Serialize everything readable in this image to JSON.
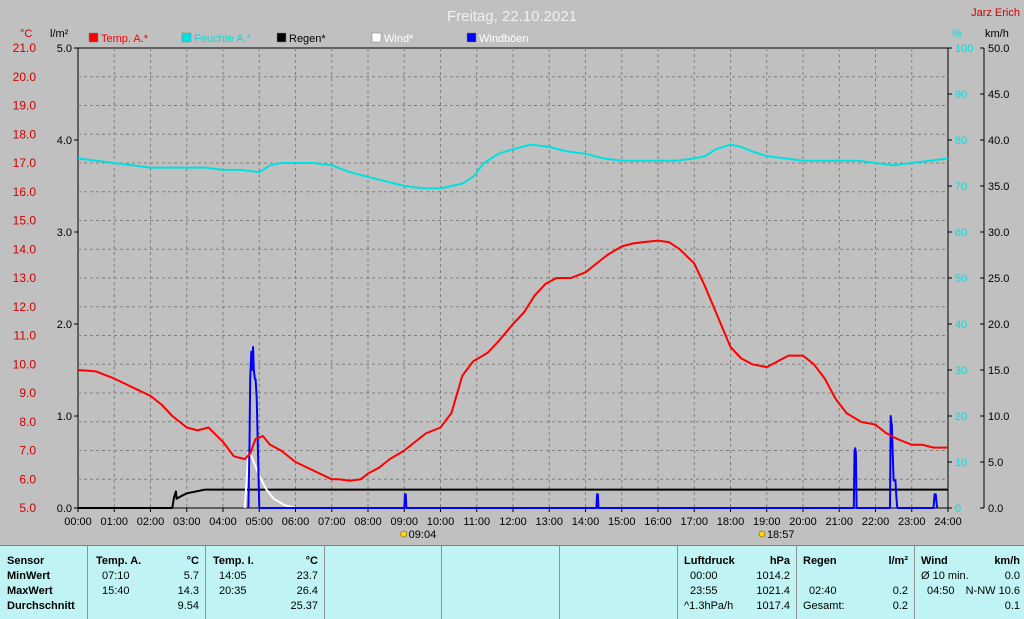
{
  "chart_data": {
    "type": "line",
    "title": "Freitag, 22.10.2021",
    "author": "Jarz Erich",
    "left_units": [
      "°C",
      "l/m²"
    ],
    "right_units": [
      "%",
      "km/h"
    ],
    "x_ticks": [
      "00:00",
      "01:00",
      "02:00",
      "03:00",
      "04:00",
      "05:00",
      "06:00",
      "07:00",
      "08:00",
      "09:00",
      "10:00",
      "11:00",
      "12:00",
      "13:00",
      "14:00",
      "15:00",
      "16:00",
      "17:00",
      "18:00",
      "19:00",
      "20:00",
      "21:00",
      "22:00",
      "23:00",
      "24:00"
    ],
    "temp_ticks": [
      "5.0",
      "6.0",
      "7.0",
      "8.0",
      "9.0",
      "10.0",
      "11.0",
      "12.0",
      "13.0",
      "14.0",
      "15.0",
      "16.0",
      "17.0",
      "18.0",
      "19.0",
      "20.0",
      "21.0"
    ],
    "rain_ticks": [
      "0.0",
      "1.0",
      "2.0",
      "3.0",
      "4.0",
      "5.0"
    ],
    "humidity_ticks": [
      "0",
      "10",
      "20",
      "30",
      "40",
      "50",
      "60",
      "70",
      "80",
      "90",
      "100"
    ],
    "wind_ticks": [
      "0.0",
      "5.0",
      "10.0",
      "15.0",
      "20.0",
      "25.0",
      "30.0",
      "35.0",
      "40.0",
      "45.0",
      "50.0"
    ],
    "temp_range": [
      5,
      21
    ],
    "rain_range": [
      0,
      5
    ],
    "humidity_range": [
      0,
      100
    ],
    "wind_range": [
      0,
      50
    ],
    "grid": true,
    "legend_position": "top",
    "sunrise": "09:04",
    "sunset": "18:57",
    "series": [
      {
        "name": "Temp. A.*",
        "axis": "temp",
        "color": "#ff0000",
        "x": [
          0,
          0.5,
          1,
          1.5,
          2,
          2.3,
          2.6,
          3,
          3.3,
          3.6,
          4,
          4.3,
          4.6,
          4.75,
          4.9,
          5.1,
          5.3,
          5.6,
          6,
          6.5,
          7,
          7.2,
          7.5,
          7.8,
          8,
          8.3,
          8.6,
          9,
          9.3,
          9.6,
          10,
          10.3,
          10.6,
          10.9,
          11.3,
          11.6,
          12,
          12.3,
          12.6,
          12.9,
          13.2,
          13.6,
          14,
          14.3,
          14.6,
          15,
          15.3,
          15.6,
          16,
          16.3,
          16.6,
          17,
          17.3,
          17.6,
          18,
          18.3,
          18.6,
          19,
          19.3,
          19.6,
          20,
          20.3,
          20.6,
          20.9,
          21.2,
          21.6,
          22,
          22.3,
          22.6,
          23,
          23.3,
          23.6,
          24
        ],
        "y": [
          9.8,
          9.75,
          9.5,
          9.2,
          8.9,
          8.6,
          8.2,
          7.8,
          7.7,
          7.8,
          7.3,
          6.8,
          6.7,
          6.9,
          7.4,
          7.5,
          7.2,
          7.0,
          6.6,
          6.3,
          6.0,
          6.0,
          5.95,
          6.0,
          6.2,
          6.4,
          6.7,
          7.0,
          7.3,
          7.6,
          7.8,
          8.3,
          9.6,
          10.1,
          10.4,
          10.8,
          11.4,
          11.8,
          12.4,
          12.8,
          13.0,
          13.0,
          13.2,
          13.5,
          13.8,
          14.1,
          14.2,
          14.25,
          14.3,
          14.25,
          14.0,
          13.5,
          12.7,
          11.8,
          10.6,
          10.2,
          10.0,
          9.9,
          10.1,
          10.3,
          10.3,
          10.0,
          9.5,
          8.8,
          8.3,
          8.0,
          7.9,
          7.6,
          7.4,
          7.2,
          7.2,
          7.1,
          7.1
        ]
      },
      {
        "name": "Feuchte A.*",
        "axis": "humidity",
        "color": "#00e0e0",
        "x": [
          0,
          0.5,
          1,
          1.5,
          2,
          2.5,
          3,
          3.5,
          4,
          4.5,
          5,
          5.3,
          5.6,
          6,
          6.5,
          7,
          7.5,
          8,
          8.5,
          9,
          9.5,
          10,
          10.3,
          10.6,
          10.9,
          11.2,
          11.6,
          12,
          12.5,
          13,
          13.5,
          14,
          14.5,
          15,
          15.5,
          16,
          16.5,
          17,
          17.3,
          17.6,
          18,
          18.3,
          18.6,
          19,
          19.5,
          20,
          20.5,
          21,
          21.5,
          22,
          22.5,
          23,
          23.5,
          24
        ],
        "y": [
          76,
          75.5,
          75,
          74.5,
          74,
          74,
          74,
          74,
          73.5,
          73.5,
          73,
          74.5,
          75,
          75,
          75,
          74.5,
          73,
          72,
          71,
          70,
          69.5,
          69.5,
          70,
          70.5,
          72,
          75,
          77,
          78,
          79,
          78.5,
          77.5,
          77,
          76,
          75.5,
          75.5,
          75.5,
          75.5,
          76,
          76.5,
          78,
          79,
          78.5,
          77.5,
          76.5,
          76,
          75.5,
          75.5,
          75.5,
          75.5,
          75,
          74.5,
          75,
          75.5,
          76
        ]
      },
      {
        "name": "Regen*",
        "axis": "rain",
        "color": "#000000",
        "x": [
          0,
          2.6,
          2.65,
          2.7,
          2.72,
          2.8,
          3.0,
          3.5,
          4.0,
          24
        ],
        "y": [
          0,
          0,
          0.12,
          0.18,
          0.1,
          0.12,
          0.16,
          0.2,
          0.2,
          0.2
        ]
      },
      {
        "name": "Wind*",
        "axis": "wind",
        "color": "#ffffff",
        "x": [
          4.6,
          4.7,
          4.8,
          4.9,
          5.0,
          5.2,
          5.4,
          5.7,
          6.0
        ],
        "y": [
          0,
          6,
          5.5,
          4.5,
          3.5,
          2,
          1,
          0.3,
          0
        ]
      },
      {
        "name": "Windböen",
        "axis": "wind",
        "color": "#0000ff",
        "x": [
          4.7,
          4.73,
          4.75,
          4.78,
          4.8,
          4.83,
          4.85,
          4.88,
          4.9,
          4.93,
          5.0,
          5.03,
          5.06,
          5.1,
          9.0,
          9.02,
          9.04,
          9.06,
          14.3,
          14.32,
          14.34,
          14.36,
          21.4,
          21.42,
          21.44,
          21.46,
          21.48,
          22.4,
          22.42,
          22.45,
          22.5,
          22.55,
          22.58,
          22.6,
          23.6,
          23.63,
          23.66,
          23.7
        ],
        "y": [
          0,
          7,
          14,
          17,
          15,
          17.5,
          15,
          14,
          14,
          12,
          0,
          0,
          0,
          0,
          0,
          1.5,
          1.5,
          0,
          0,
          1.5,
          1.5,
          0,
          0,
          6,
          6.5,
          6,
          0,
          0,
          10,
          9,
          3,
          3,
          1,
          0,
          0,
          1.5,
          1.5,
          0
        ]
      }
    ]
  },
  "stats": {
    "sensor": {
      "header": "Sensor",
      "rows": [
        "MinWert",
        "MaxWert",
        "Durchschnitt"
      ]
    },
    "temp_a": {
      "header": "Temp. A.",
      "unit": "°C",
      "min_time": "07:10",
      "min_value": "5.7",
      "max_time": "15:40",
      "max_value": "14.3",
      "avg_value": "9.54"
    },
    "temp_i": {
      "header": "Temp. I.",
      "unit": "°C",
      "min_time": "14:05",
      "min_value": "23.7",
      "max_time": "20:35",
      "max_value": "26.4",
      "avg_value": "25.37"
    },
    "pressure": {
      "header": "Luftdruck",
      "unit": "hPa",
      "min_time": "00:00",
      "min_value": "1014.2",
      "max_time": "23:55",
      "max_value": "1021.4",
      "trend_label": "^1.3hPa/h",
      "trend_value": "1017.4"
    },
    "rain": {
      "header": "Regen",
      "unit": "l/m²",
      "row2_time": "02:40",
      "row2_value": "0.2",
      "total_label": "Gesamt:",
      "total_value": "0.2"
    },
    "wind": {
      "header": "Wind",
      "unit": "km/h",
      "avg_label": "Ø 10 min.",
      "avg_value": "0.0",
      "max_time": "04:50",
      "max_value": "N-NW 10.6",
      "row3_value": "0.1"
    }
  }
}
